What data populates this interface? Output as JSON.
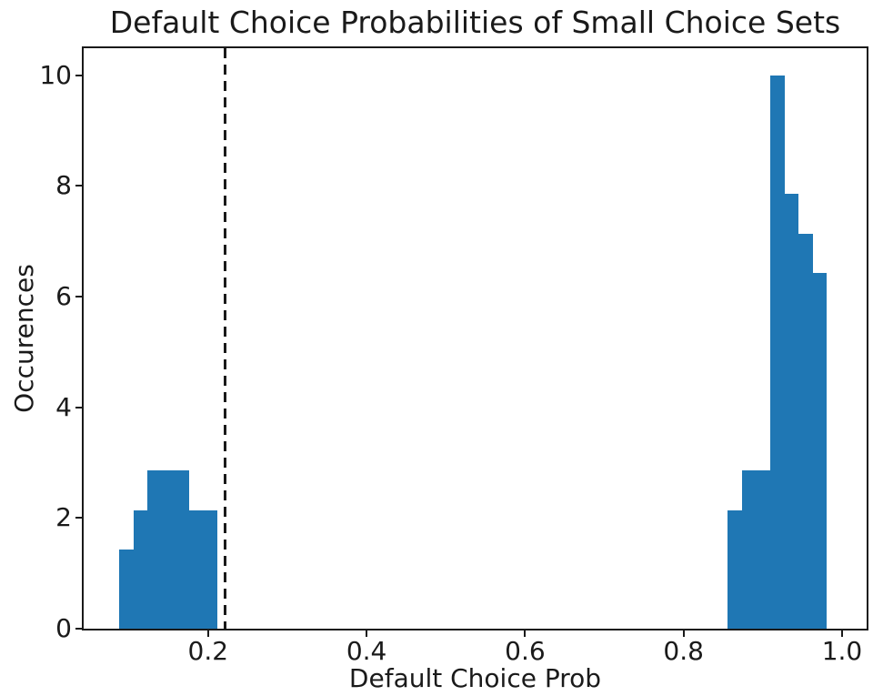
{
  "chart_data": {
    "type": "bar",
    "subtype": "histogram",
    "title": "Default Choice Probabilities of Small Choice Sets",
    "xlabel": "Default Choice Prob",
    "ylabel": "Occurences",
    "xlim": [
      0.043,
      1.031
    ],
    "ylim": [
      0,
      10.49
    ],
    "grid": false,
    "legend": "none",
    "background_color": "#ffffff",
    "axes_color": "#1a1a1a",
    "bar_color": "#1f77b4",
    "xticks": [
      {
        "value": 0.2,
        "label": "0.2"
      },
      {
        "value": 0.4,
        "label": "0.4"
      },
      {
        "value": 0.6,
        "label": "0.6"
      },
      {
        "value": 0.8,
        "label": "0.8"
      },
      {
        "value": 1.0,
        "label": "1.0"
      }
    ],
    "yticks": [
      {
        "value": 0,
        "label": "0"
      },
      {
        "value": 2,
        "label": "2"
      },
      {
        "value": 4,
        "label": "4"
      },
      {
        "value": 6,
        "label": "6"
      },
      {
        "value": 8,
        "label": "8"
      },
      {
        "value": 10,
        "label": "10"
      }
    ],
    "bars": [
      {
        "x0": 0.088,
        "x1": 0.1057,
        "h": 1.43
      },
      {
        "x0": 0.1057,
        "x1": 0.1234,
        "h": 2.14
      },
      {
        "x0": 0.1234,
        "x1": 0.1411,
        "h": 2.86
      },
      {
        "x0": 0.1411,
        "x1": 0.1589,
        "h": 2.86
      },
      {
        "x0": 0.1589,
        "x1": 0.1766,
        "h": 2.86
      },
      {
        "x0": 0.1766,
        "x1": 0.1943,
        "h": 2.14
      },
      {
        "x0": 0.1943,
        "x1": 0.212,
        "h": 2.14
      },
      {
        "x0": 0.856,
        "x1": 0.8739,
        "h": 2.14
      },
      {
        "x0": 0.8739,
        "x1": 0.8917,
        "h": 2.86
      },
      {
        "x0": 0.8917,
        "x1": 0.9096,
        "h": 2.86
      },
      {
        "x0": 0.9096,
        "x1": 0.9274,
        "h": 10.0
      },
      {
        "x0": 0.9274,
        "x1": 0.9453,
        "h": 7.86
      },
      {
        "x0": 0.9453,
        "x1": 0.9631,
        "h": 7.14
      },
      {
        "x0": 0.9631,
        "x1": 0.981,
        "h": 6.43
      }
    ],
    "vline": {
      "x": 0.222,
      "color": "#1a1a1a",
      "style": "dashed"
    }
  }
}
